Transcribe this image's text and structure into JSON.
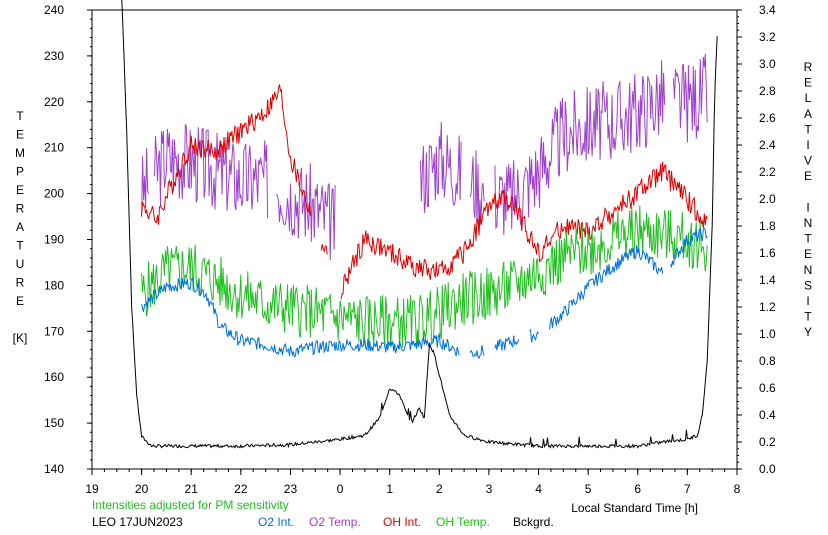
{
  "chart_data": {
    "type": "line",
    "title": "",
    "xlabel": "Local Standard Time [h]",
    "ylabel_left": [
      "T",
      "E",
      "M",
      "P",
      "E",
      "R",
      "A",
      "T",
      "U",
      "R",
      "E",
      "",
      "[K]"
    ],
    "ylabel_right": [
      "R",
      "E",
      "L",
      "A",
      "T",
      "I",
      "V",
      "E",
      "",
      "I",
      "N",
      "T",
      "E",
      "N",
      "S",
      "I",
      "T",
      "Y"
    ],
    "x_ticks": [
      "19",
      "20",
      "21",
      "22",
      "23",
      "0",
      "1",
      "2",
      "3",
      "4",
      "5",
      "6",
      "7",
      "8"
    ],
    "xlim": [
      19,
      32
    ],
    "y_left_ticks": [
      "140",
      "150",
      "160",
      "170",
      "180",
      "190",
      "200",
      "210",
      "220",
      "230",
      "240"
    ],
    "ylim_left": [
      140,
      240
    ],
    "y_right_ticks": [
      "0.0",
      "0.2",
      "0.4",
      "0.6",
      "0.8",
      "1.0",
      "1.2",
      "1.4",
      "1.6",
      "1.8",
      "2.0",
      "2.2",
      "2.4",
      "2.6",
      "2.8",
      "3.0",
      "3.2",
      "3.4"
    ],
    "ylim_right": [
      0.0,
      3.4
    ],
    "note": "Intensities adjusted for PM sensitivity",
    "station": "LEO 17JUN2023",
    "legend": [
      {
        "label": "O2 Int.",
        "color": "#0070e0"
      },
      {
        "label": "O2 Temp.",
        "color": "#a040d0"
      },
      {
        "label": "OH Int.",
        "color": "#e00000"
      },
      {
        "label": "OH Temp.",
        "color": "#20c020"
      },
      {
        "label": "Bckgrd.",
        "color": "#000000"
      }
    ],
    "series": [
      {
        "name": "O2 Temp.",
        "axis": "left",
        "color": "#a040d0",
        "noise": 9,
        "x": [
          20.0,
          20.5,
          21.0,
          21.5,
          22.0,
          22.5,
          23.0,
          23.5,
          23.9
        ],
        "y": [
          200,
          208,
          207,
          205,
          203,
          203,
          200,
          197,
          193
        ],
        "gaps": [
          [
            20.15,
            20.25
          ],
          [
            22.55,
            22.7
          ],
          [
            23.9,
            25.6
          ],
          [
            26.45,
            26.6
          ],
          [
            26.9,
            27.1
          ],
          [
            30.55,
            30.7
          ]
        ],
        "x2": [
          25.6,
          26.0,
          26.5,
          27.0,
          27.5,
          28.0,
          28.5,
          29.0,
          29.5,
          30.0,
          30.5,
          31.0,
          31.4
        ],
        "y2": [
          203,
          208,
          204,
          200,
          199,
          205,
          213,
          215,
          216,
          218,
          221,
          220,
          222
        ]
      },
      {
        "name": "OH Int.",
        "axis": "right",
        "color": "#e00000",
        "noise": 0.08,
        "x": [
          20.0,
          20.3,
          20.6,
          21.0,
          21.5,
          22.0,
          22.5,
          22.8,
          23.0,
          23.3,
          23.5,
          23.8,
          24.0,
          24.5,
          25.0,
          25.5,
          26.0,
          26.5,
          27.0,
          27.3,
          27.5,
          28.0,
          28.5,
          29.0,
          29.5,
          30.0,
          30.5,
          31.0,
          31.4
        ],
        "y": [
          1.95,
          1.85,
          2.1,
          2.4,
          2.35,
          2.5,
          2.65,
          2.8,
          2.3,
          2.0,
          1.8,
          1.5,
          1.3,
          1.7,
          1.6,
          1.5,
          1.45,
          1.6,
          1.95,
          2.0,
          1.95,
          1.6,
          1.8,
          1.75,
          1.9,
          2.05,
          2.2,
          2.0,
          1.8
        ],
        "gaps": [
          [
            23.4,
            23.6
          ],
          [
            23.75,
            24.0
          ]
        ]
      },
      {
        "name": "OH Temp.",
        "axis": "left",
        "color": "#20c020",
        "noise": 6,
        "x": [
          20.0,
          20.5,
          21.0,
          21.5,
          22.0,
          22.5,
          23.0,
          23.5,
          24.0,
          24.5,
          25.0,
          25.5,
          26.0,
          26.5,
          27.0,
          27.5,
          28.0,
          28.5,
          29.0,
          29.5,
          30.0,
          30.5,
          31.0,
          31.4
        ],
        "y": [
          178,
          183,
          184,
          181,
          178,
          176,
          175,
          174,
          173,
          172,
          172,
          172,
          174,
          177,
          178,
          180,
          183,
          186,
          188,
          190,
          192,
          191,
          190,
          188
        ],
        "gaps": []
      },
      {
        "name": "O2 Int.",
        "axis": "right",
        "color": "#0070e0",
        "noise": 0.05,
        "x": [
          20.0,
          20.5,
          21.0,
          21.3,
          21.6,
          22.0,
          22.5,
          23.0,
          23.5,
          24.0,
          24.5,
          25.0,
          25.5,
          26.0,
          26.5,
          27.0,
          27.5,
          28.0,
          28.5,
          29.0,
          29.5,
          30.0,
          30.5,
          31.0,
          31.4
        ],
        "y": [
          1.2,
          1.35,
          1.38,
          1.3,
          1.05,
          0.95,
          0.92,
          0.87,
          0.9,
          0.92,
          0.92,
          0.9,
          0.92,
          0.95,
          0.85,
          0.88,
          0.95,
          1.0,
          1.15,
          1.35,
          1.5,
          1.62,
          1.45,
          1.7,
          1.75
        ],
        "gaps": [
          [
            26.4,
            26.6
          ],
          [
            26.9,
            27.1
          ],
          [
            27.6,
            27.8
          ],
          [
            28.0,
            28.2
          ],
          [
            30.5,
            30.65
          ]
        ]
      },
      {
        "name": "Bckgrd.",
        "axis": "right",
        "color": "#000000",
        "noise": 0.012,
        "x": [
          19.6,
          19.7,
          19.8,
          19.9,
          20.0,
          20.2,
          21.0,
          22.0,
          23.0,
          24.0,
          24.5,
          24.8,
          25.0,
          25.2,
          25.35,
          25.45,
          25.6,
          25.7,
          25.8,
          25.9,
          26.0,
          26.2,
          26.5,
          27.0,
          28.0,
          29.0,
          30.0,
          30.5,
          31.0,
          31.2,
          31.3,
          31.4,
          31.5,
          31.55,
          31.6
        ],
        "y": [
          3.5,
          2.5,
          1.2,
          0.55,
          0.24,
          0.17,
          0.17,
          0.17,
          0.18,
          0.22,
          0.25,
          0.38,
          0.6,
          0.55,
          0.4,
          0.35,
          0.45,
          0.38,
          0.93,
          0.85,
          0.7,
          0.4,
          0.25,
          0.2,
          0.17,
          0.17,
          0.17,
          0.2,
          0.22,
          0.25,
          0.4,
          0.8,
          1.8,
          2.8,
          3.2
        ],
        "gaps": []
      }
    ]
  }
}
